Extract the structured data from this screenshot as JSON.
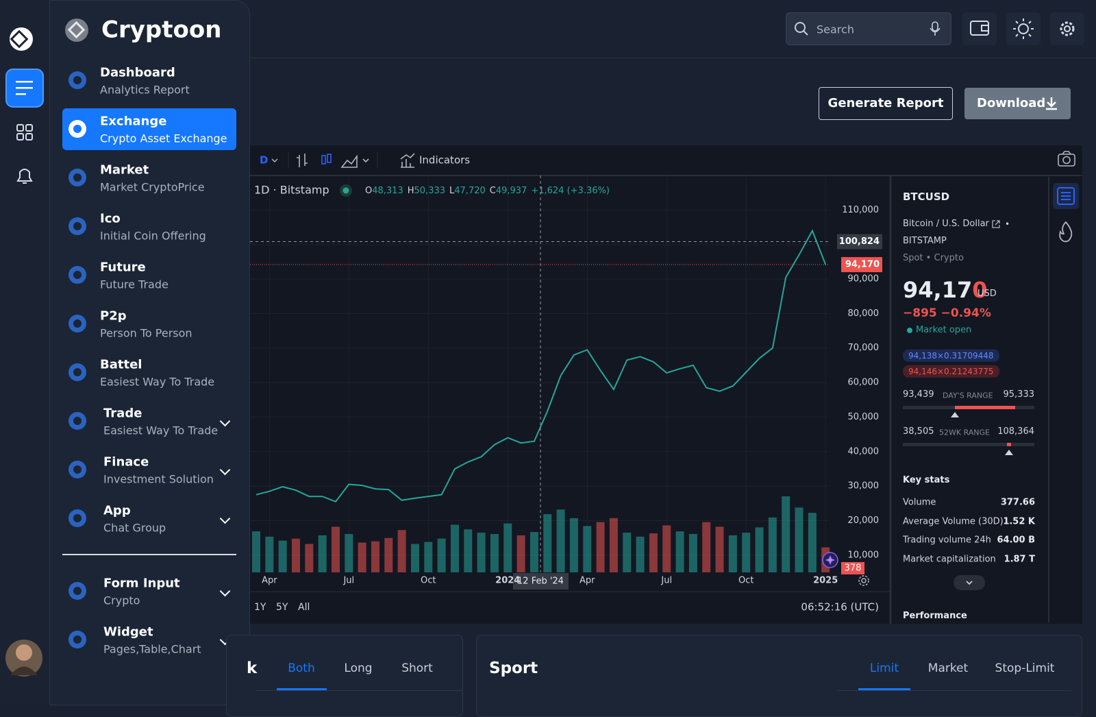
{
  "sidebar": {
    "brand": "Cryptoon",
    "menu": [
      {
        "title": "Dashboard",
        "subtitle": "Analytics Report"
      },
      {
        "title": "Exchange",
        "subtitle": "Crypto Asset Exchange"
      },
      {
        "title": "Market",
        "subtitle": "Market CryptoPrice"
      },
      {
        "title": "Ico",
        "subtitle": "Initial Coin Offering"
      },
      {
        "title": "Future",
        "subtitle": "Future Trade"
      },
      {
        "title": "P2p",
        "subtitle": "Person To Person"
      },
      {
        "title": "Battel",
        "subtitle": "Easiest Way To Trade"
      },
      {
        "title": "Trade",
        "subtitle": "Easiest Way To Trade"
      },
      {
        "title": "Finace",
        "subtitle": "Investment Solution"
      },
      {
        "title": "App",
        "subtitle": "Chat Group"
      }
    ],
    "menu2": [
      {
        "title": "Form Input",
        "subtitle": "Crypto"
      },
      {
        "title": "Widget",
        "subtitle": "Pages,Table,Chart"
      }
    ]
  },
  "header": {
    "search_placeholder": "Search",
    "buttons": [
      "Generate Report",
      "Download"
    ]
  },
  "chart_data": {
    "type": "line",
    "title": "1D · Bitstamp",
    "interval_button": "D",
    "indicators_label": "Indicators",
    "ohlc": [
      {
        "k": "O",
        "v": "48,313"
      },
      {
        "k": "H",
        "v": "50,333"
      },
      {
        "k": "L",
        "v": "47,720"
      },
      {
        "k": "C",
        "v": "49,937"
      }
    ],
    "change": "+1,624 (+3.36%)",
    "categories": [
      null,
      "Apr",
      null,
      null,
      null,
      null,
      null,
      "Jul",
      null,
      null,
      null,
      null,
      null,
      "Oct",
      null,
      null,
      null,
      null,
      null,
      "2024",
      null,
      null,
      null,
      null,
      null,
      "Apr",
      null,
      null,
      null,
      null,
      null,
      "Jul",
      null,
      null,
      null,
      null,
      null,
      "Oct",
      null,
      null,
      null,
      null,
      null,
      "2025"
    ],
    "values": [
      27500,
      28500,
      29800,
      28800,
      27000,
      27000,
      25500,
      30500,
      30200,
      29200,
      29000,
      25900,
      26500,
      27000,
      27500,
      35000,
      37000,
      38500,
      42000,
      44000,
      42500,
      43000,
      51800,
      62000,
      68000,
      69500,
      63500,
      58000,
      66500,
      67500,
      66000,
      62800,
      64000,
      65000,
      58500,
      57500,
      59000,
      63000,
      67000,
      70000,
      90500,
      97000,
      104000,
      94170
    ],
    "color": "#26a69a",
    "down_color": "#ef5350",
    "volume": {
      "axis": "y2",
      "values": [
        620,
        540,
        480,
        510,
        430,
        560,
        690,
        580,
        450,
        470,
        520,
        640,
        430,
        460,
        510,
        720,
        650,
        600,
        580,
        740,
        560,
        610,
        880,
        950,
        820,
        700,
        760,
        820,
        600,
        540,
        590,
        710,
        620,
        580,
        760,
        690,
        560,
        600,
        680,
        830,
        1150,
        980,
        900,
        378
      ]
    },
    "ylim": [
      5000,
      120000
    ],
    "y2lim": [
      0,
      6000
    ],
    "yticks": [
      {
        "value": 10000,
        "label": "10,000"
      },
      {
        "value": 20000,
        "label": "20,000"
      },
      {
        "value": 30000,
        "label": "30,000"
      },
      {
        "value": 40000,
        "label": "40,000"
      },
      {
        "value": 50000,
        "label": "50,000"
      },
      {
        "value": 60000,
        "label": "60,000"
      },
      {
        "value": 70000,
        "label": "70,000"
      },
      {
        "value": 80000,
        "label": "80,000"
      },
      {
        "value": 90000,
        "label": "90,000"
      },
      {
        "value": 100000,
        "label": "100,000"
      },
      {
        "value": 110000,
        "label": "110,000"
      }
    ],
    "grid": true,
    "crosshair_price": {
      "value": 100824,
      "label": "100,824"
    },
    "crosshair_date": "12 Feb '24",
    "last_price": {
      "value": 94170,
      "label": "94,170"
    },
    "ranges": [
      "1Y",
      "5Y",
      "All"
    ],
    "clock": "06:52:16 (UTC)"
  },
  "info": {
    "symbol": "BTCUSD",
    "name": "Bitcoin / U.S. Dollar",
    "separator": "•",
    "exchange": "BITSTAMP",
    "market_type": "Spot • Crypto",
    "price_main": "94,17",
    "price_last": "0",
    "currency": "USD",
    "change": "−895",
    "change_pct": "−0.94%",
    "status": "Market open",
    "bid": "94,138×0.31709448",
    "ask": "94,146×0.21243775",
    "day_low": "93,439",
    "day_range_label": "DAY'S RANGE",
    "day_high": "95,333",
    "wk_low": "38,505",
    "wk_range_label": "52WK RANGE",
    "wk_high": "108,364",
    "key_stats_title": "Key stats",
    "key_stats": [
      [
        "Volume",
        "377.66"
      ],
      [
        "Average Volume (30D)",
        "1.52 K"
      ],
      [
        "Trading volume 24h",
        "64.00 B"
      ],
      [
        "Market capitalization",
        "1.87 T"
      ]
    ],
    "performance_title": "Performance"
  },
  "order_panel": {
    "title_fragment": "k",
    "tabs": [
      "Both",
      "Long",
      "Short"
    ]
  },
  "spot_panel": {
    "title": "Sport",
    "tabs": [
      "Limit",
      "Market",
      "Stop-Limit"
    ]
  }
}
